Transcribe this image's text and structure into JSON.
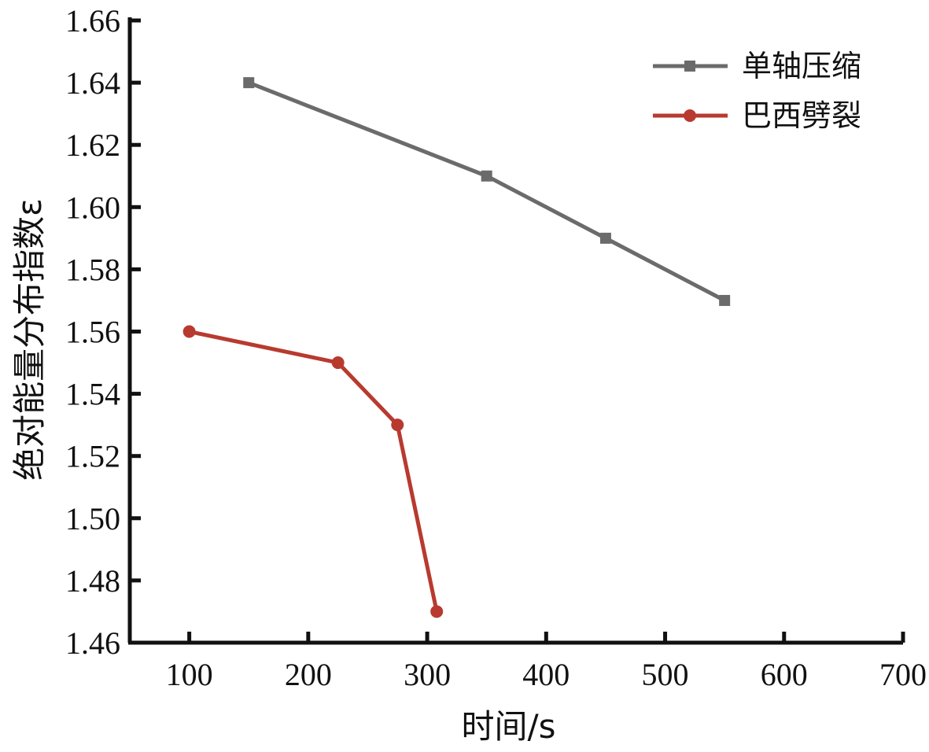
{
  "chart_data": {
    "type": "line",
    "xlabel": "时间/s",
    "ylabel": "绝对能量分布指数ε",
    "xlim": [
      50,
      700
    ],
    "ylim": [
      1.46,
      1.66
    ],
    "x_ticks": [
      "100",
      "200",
      "300",
      "400",
      "500",
      "600",
      "700"
    ],
    "x_tick_values": [
      100,
      200,
      300,
      400,
      500,
      600,
      700
    ],
    "y_ticks": [
      "1.46",
      "1.48",
      "1.50",
      "1.52",
      "1.54",
      "1.56",
      "1.58",
      "1.60",
      "1.62",
      "1.64",
      "1.66"
    ],
    "y_tick_values": [
      1.46,
      1.48,
      1.5,
      1.52,
      1.54,
      1.56,
      1.58,
      1.6,
      1.62,
      1.64,
      1.66
    ],
    "legend_position": "top-right",
    "series": [
      {
        "name": "单轴压缩",
        "color": "#6b6b6b",
        "marker": "square",
        "x": [
          150,
          350,
          450,
          550
        ],
        "y": [
          1.64,
          1.61,
          1.59,
          1.57
        ]
      },
      {
        "name": "巴西劈裂",
        "color": "#b83a2f",
        "marker": "circle",
        "x": [
          100,
          225,
          275,
          308
        ],
        "y": [
          1.56,
          1.55,
          1.53,
          1.47
        ]
      }
    ]
  }
}
